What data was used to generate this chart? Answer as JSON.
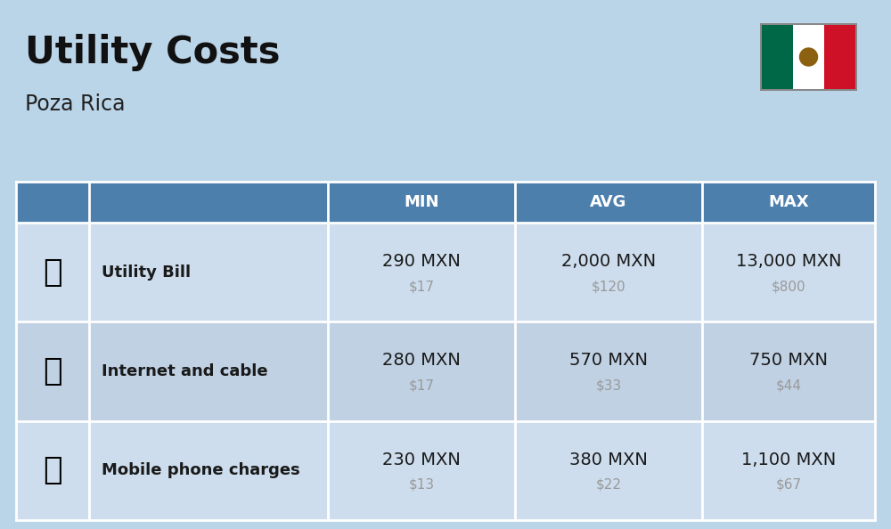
{
  "title": "Utility Costs",
  "subtitle": "Poza Rica",
  "background_color": "#bad4e8",
  "header_bg_color": "#4d7fad",
  "header_text_color": "#ffffff",
  "row_colors": [
    "#cddded",
    "#c0d1e4"
  ],
  "col_headers": [
    "MIN",
    "AVG",
    "MAX"
  ],
  "rows": [
    {
      "label": "Utility Bill",
      "min_mxn": "290 MXN",
      "min_usd": "$17",
      "avg_mxn": "2,000 MXN",
      "avg_usd": "$120",
      "max_mxn": "13,000 MXN",
      "max_usd": "$800"
    },
    {
      "label": "Internet and cable",
      "min_mxn": "280 MXN",
      "min_usd": "$17",
      "avg_mxn": "570 MXN",
      "avg_usd": "$33",
      "max_mxn": "750 MXN",
      "max_usd": "$44"
    },
    {
      "label": "Mobile phone charges",
      "min_mxn": "230 MXN",
      "min_usd": "$13",
      "avg_mxn": "380 MXN",
      "avg_usd": "$22",
      "max_mxn": "1,100 MXN",
      "max_usd": "$67"
    }
  ],
  "title_fontsize": 30,
  "subtitle_fontsize": 17,
  "header_fontsize": 13,
  "label_fontsize": 13,
  "value_fontsize": 14,
  "usd_fontsize": 11,
  "line_color": "#ffffff",
  "label_color": "#1a1a1a",
  "usd_color": "#999999",
  "flag_green": "#006847",
  "flag_white": "#ffffff",
  "flag_red": "#ce1126"
}
